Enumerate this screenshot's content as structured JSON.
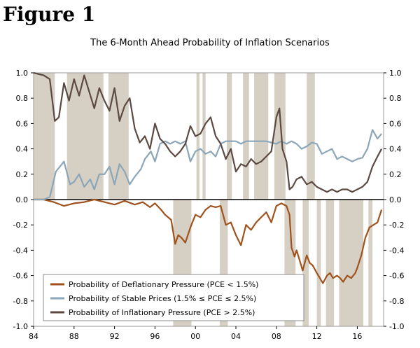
{
  "figure_label": "Figure 1",
  "chart_data": {
    "type": "line",
    "title": "The 6-Month Ahead Probability of Inflation Scenarios",
    "xlabel": "",
    "ylabel": "",
    "xlim": [
      1984,
      2018.6
    ],
    "ylim": [
      -1.0,
      1.0
    ],
    "x_ticks": [
      {
        "value": 1984,
        "label": "84"
      },
      {
        "value": 1988,
        "label": "88"
      },
      {
        "value": 1992,
        "label": "92"
      },
      {
        "value": 1996,
        "label": "96"
      },
      {
        "value": 2000,
        "label": "00"
      },
      {
        "value": 2004,
        "label": "04"
      },
      {
        "value": 2008,
        "label": "08"
      },
      {
        "value": 2012,
        "label": "12"
      },
      {
        "value": 2016,
        "label": "16"
      }
    ],
    "y_ticks": [
      {
        "value": 1.0,
        "label": "1.0"
      },
      {
        "value": 0.8,
        "label": "0.8"
      },
      {
        "value": 0.6,
        "label": "0.6"
      },
      {
        "value": 0.4,
        "label": "0.4"
      },
      {
        "value": 0.2,
        "label": "0.2"
      },
      {
        "value": 0.0,
        "label": "0.0"
      },
      {
        "value": -0.2,
        "label": "-0.2"
      },
      {
        "value": -0.4,
        "label": "-0.4"
      },
      {
        "value": -0.6,
        "label": "-0.6"
      },
      {
        "value": -0.8,
        "label": "-0.8"
      },
      {
        "value": -1.0,
        "label": "-1.0"
      }
    ],
    "upper_bands": [
      [
        1984.0,
        1986.1
      ],
      [
        1987.3,
        1990.9
      ],
      [
        1991.4,
        1993.4
      ],
      [
        2000.1,
        2000.4
      ],
      [
        2000.7,
        2001.0
      ],
      [
        2003.1,
        2003.6
      ],
      [
        2004.7,
        2005.3
      ],
      [
        2005.8,
        2007.2
      ],
      [
        2007.8,
        2008.9
      ],
      [
        2011.0,
        2011.8
      ]
    ],
    "lower_bands": [
      [
        1997.8,
        1999.6
      ],
      [
        2002.4,
        2003.2
      ],
      [
        2008.8,
        2009.9
      ],
      [
        2010.6,
        2011.2
      ],
      [
        2012.0,
        2012.4
      ],
      [
        2012.9,
        2013.7
      ],
      [
        2014.2,
        2016.6
      ],
      [
        2017.1,
        2017.5
      ]
    ],
    "series": [
      {
        "name": "Probability of Deflationary Pressure (PCE  < 1.5%)",
        "color": "#a0521d",
        "x": [
          1984,
          1985,
          1986,
          1987,
          1988,
          1989,
          1990,
          1991,
          1992,
          1993,
          1994,
          1994.8,
          1995.5,
          1996,
          1996.6,
          1997,
          1997.6,
          1998,
          1998.3,
          1998.6,
          1999,
          1999.5,
          2000,
          2000.5,
          2001,
          2001.5,
          2002,
          2002.5,
          2003,
          2003.5,
          2004,
          2004.5,
          2005,
          2005.5,
          2006,
          2006.5,
          2007,
          2007.5,
          2008,
          2008.5,
          2009,
          2009.3,
          2009.5,
          2009.8,
          2010,
          2010.3,
          2010.6,
          2011,
          2011.3,
          2011.6,
          2012,
          2012.3,
          2012.6,
          2013,
          2013.3,
          2013.6,
          2014,
          2014.3,
          2014.6,
          2015,
          2015.4,
          2015.8,
          2016,
          2016.4,
          2016.8,
          2017.2,
          2017.6,
          2018,
          2018.4
        ],
        "values": [
          0.0,
          0.0,
          -0.02,
          -0.05,
          -0.03,
          -0.02,
          0.0,
          -0.02,
          -0.04,
          -0.01,
          -0.04,
          -0.02,
          -0.06,
          -0.03,
          -0.08,
          -0.12,
          -0.16,
          -0.35,
          -0.28,
          -0.3,
          -0.34,
          -0.22,
          -0.12,
          -0.14,
          -0.08,
          -0.05,
          -0.06,
          -0.05,
          -0.2,
          -0.18,
          -0.28,
          -0.36,
          -0.2,
          -0.24,
          -0.18,
          -0.14,
          -0.1,
          -0.18,
          -0.05,
          -0.03,
          -0.05,
          -0.12,
          -0.38,
          -0.45,
          -0.4,
          -0.48,
          -0.56,
          -0.44,
          -0.5,
          -0.52,
          -0.58,
          -0.62,
          -0.66,
          -0.6,
          -0.58,
          -0.62,
          -0.6,
          -0.62,
          -0.65,
          -0.6,
          -0.62,
          -0.58,
          -0.54,
          -0.44,
          -0.3,
          -0.22,
          -0.2,
          -0.18,
          -0.08
        ]
      },
      {
        "name": "Probability of Stable Prices (1.5% ≤ PCE ≤ 2.5%)",
        "color": "#8aa6b8",
        "x": [
          1984,
          1985,
          1985.6,
          1986.2,
          1987,
          1987.6,
          1988,
          1988.5,
          1989,
          1989.6,
          1990,
          1990.5,
          1991,
          1991.5,
          1992,
          1992.5,
          1993,
          1993.5,
          1994,
          1994.6,
          1995,
          1995.6,
          1996,
          1996.5,
          1997,
          1997.5,
          1998,
          1998.5,
          1999,
          1999.5,
          2000,
          2000.5,
          2001,
          2001.5,
          2002,
          2002.5,
          2003,
          2003.5,
          2004,
          2004.5,
          2005,
          2006,
          2007,
          2008,
          2008.5,
          2009,
          2009.5,
          2010,
          2010.5,
          2011,
          2011.5,
          2012,
          2012.5,
          2013,
          2013.5,
          2014,
          2014.5,
          2015,
          2015.5,
          2016,
          2016.5,
          2017,
          2017.5,
          2018,
          2018.4
        ],
        "values": [
          0.0,
          0.0,
          0.02,
          0.22,
          0.3,
          0.12,
          0.14,
          0.2,
          0.1,
          0.16,
          0.08,
          0.2,
          0.2,
          0.26,
          0.12,
          0.28,
          0.22,
          0.12,
          0.18,
          0.24,
          0.32,
          0.38,
          0.3,
          0.44,
          0.46,
          0.44,
          0.46,
          0.44,
          0.46,
          0.3,
          0.38,
          0.4,
          0.36,
          0.38,
          0.34,
          0.44,
          0.46,
          0.46,
          0.46,
          0.44,
          0.46,
          0.46,
          0.46,
          0.44,
          0.46,
          0.44,
          0.46,
          0.44,
          0.4,
          0.42,
          0.45,
          0.44,
          0.36,
          0.38,
          0.4,
          0.32,
          0.34,
          0.32,
          0.3,
          0.32,
          0.33,
          0.4,
          0.55,
          0.48,
          0.52
        ]
      },
      {
        "name": "Probability of Inflationary Pressure (PCE > 2.5%)",
        "color": "#5c4a42",
        "x": [
          1984,
          1985,
          1985.6,
          1986.1,
          1986.5,
          1987,
          1987.5,
          1988,
          1988.5,
          1989,
          1989.5,
          1990,
          1990.5,
          1991,
          1991.5,
          1992,
          1992.5,
          1993,
          1993.5,
          1994,
          1994.5,
          1995,
          1995.5,
          1996,
          1996.5,
          1997,
          1997.5,
          1998,
          1998.5,
          1999,
          1999.5,
          2000,
          2000.5,
          2001,
          2001.5,
          2002,
          2002.5,
          2003,
          2003.5,
          2004,
          2004.5,
          2005,
          2005.5,
          2006,
          2006.5,
          2007,
          2007.5,
          2008,
          2008.3,
          2008.6,
          2009,
          2009.3,
          2009.6,
          2010,
          2010.5,
          2011,
          2011.5,
          2012,
          2012.5,
          2013,
          2013.5,
          2014,
          2014.5,
          2015,
          2015.5,
          2016,
          2016.5,
          2017,
          2017.5,
          2018,
          2018.4
        ],
        "values": [
          1.0,
          0.98,
          0.95,
          0.62,
          0.65,
          0.92,
          0.78,
          0.95,
          0.82,
          0.98,
          0.85,
          0.72,
          0.88,
          0.78,
          0.7,
          0.88,
          0.62,
          0.74,
          0.8,
          0.56,
          0.45,
          0.5,
          0.4,
          0.6,
          0.48,
          0.44,
          0.38,
          0.34,
          0.38,
          0.44,
          0.58,
          0.5,
          0.52,
          0.6,
          0.65,
          0.5,
          0.44,
          0.32,
          0.4,
          0.22,
          0.28,
          0.26,
          0.32,
          0.28,
          0.3,
          0.34,
          0.38,
          0.65,
          0.72,
          0.4,
          0.3,
          0.08,
          0.1,
          0.16,
          0.18,
          0.12,
          0.14,
          0.1,
          0.08,
          0.06,
          0.08,
          0.06,
          0.08,
          0.08,
          0.06,
          0.08,
          0.1,
          0.14,
          0.26,
          0.34,
          0.4
        ]
      }
    ],
    "legend": {
      "placement": "bottom-left",
      "entries": [
        "Probability of Deflationary Pressure (PCE  < 1.5%)",
        "Probability of Stable Prices (1.5% ≤ PCE ≤ 2.5%)",
        "Probability of Inflationary Pressure (PCE > 2.5%)"
      ]
    },
    "colors": {
      "band": "#d6d0c4",
      "axis": "#000000",
      "frame": "#999999"
    }
  }
}
